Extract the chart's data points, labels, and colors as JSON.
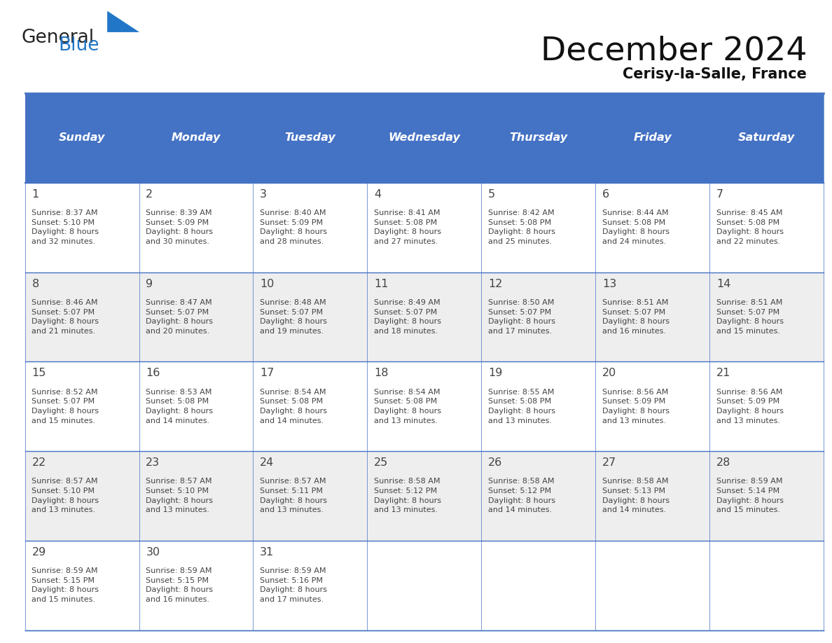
{
  "title": "December 2024",
  "subtitle": "Cerisy-la-Salle, France",
  "days_of_week": [
    "Sunday",
    "Monday",
    "Tuesday",
    "Wednesday",
    "Thursday",
    "Friday",
    "Saturday"
  ],
  "header_bg": "#4472C4",
  "header_text": "#FFFFFF",
  "row_bg_odd": "#FFFFFF",
  "row_bg_even": "#EEEEEE",
  "cell_border": "#4472C4",
  "day_num_color": "#444444",
  "cell_text_color": "#444444",
  "weeks": [
    [
      {
        "day": 1,
        "sunrise": "8:37 AM",
        "sunset": "5:10 PM",
        "daylight": "8 hours and 32 minutes."
      },
      {
        "day": 2,
        "sunrise": "8:39 AM",
        "sunset": "5:09 PM",
        "daylight": "8 hours and 30 minutes."
      },
      {
        "day": 3,
        "sunrise": "8:40 AM",
        "sunset": "5:09 PM",
        "daylight": "8 hours and 28 minutes."
      },
      {
        "day": 4,
        "sunrise": "8:41 AM",
        "sunset": "5:08 PM",
        "daylight": "8 hours and 27 minutes."
      },
      {
        "day": 5,
        "sunrise": "8:42 AM",
        "sunset": "5:08 PM",
        "daylight": "8 hours and 25 minutes."
      },
      {
        "day": 6,
        "sunrise": "8:44 AM",
        "sunset": "5:08 PM",
        "daylight": "8 hours and 24 minutes."
      },
      {
        "day": 7,
        "sunrise": "8:45 AM",
        "sunset": "5:08 PM",
        "daylight": "8 hours and 22 minutes."
      }
    ],
    [
      {
        "day": 8,
        "sunrise": "8:46 AM",
        "sunset": "5:07 PM",
        "daylight": "8 hours and 21 minutes."
      },
      {
        "day": 9,
        "sunrise": "8:47 AM",
        "sunset": "5:07 PM",
        "daylight": "8 hours and 20 minutes."
      },
      {
        "day": 10,
        "sunrise": "8:48 AM",
        "sunset": "5:07 PM",
        "daylight": "8 hours and 19 minutes."
      },
      {
        "day": 11,
        "sunrise": "8:49 AM",
        "sunset": "5:07 PM",
        "daylight": "8 hours and 18 minutes."
      },
      {
        "day": 12,
        "sunrise": "8:50 AM",
        "sunset": "5:07 PM",
        "daylight": "8 hours and 17 minutes."
      },
      {
        "day": 13,
        "sunrise": "8:51 AM",
        "sunset": "5:07 PM",
        "daylight": "8 hours and 16 minutes."
      },
      {
        "day": 14,
        "sunrise": "8:51 AM",
        "sunset": "5:07 PM",
        "daylight": "8 hours and 15 minutes."
      }
    ],
    [
      {
        "day": 15,
        "sunrise": "8:52 AM",
        "sunset": "5:07 PM",
        "daylight": "8 hours and 15 minutes."
      },
      {
        "day": 16,
        "sunrise": "8:53 AM",
        "sunset": "5:08 PM",
        "daylight": "8 hours and 14 minutes."
      },
      {
        "day": 17,
        "sunrise": "8:54 AM",
        "sunset": "5:08 PM",
        "daylight": "8 hours and 14 minutes."
      },
      {
        "day": 18,
        "sunrise": "8:54 AM",
        "sunset": "5:08 PM",
        "daylight": "8 hours and 13 minutes."
      },
      {
        "day": 19,
        "sunrise": "8:55 AM",
        "sunset": "5:08 PM",
        "daylight": "8 hours and 13 minutes."
      },
      {
        "day": 20,
        "sunrise": "8:56 AM",
        "sunset": "5:09 PM",
        "daylight": "8 hours and 13 minutes."
      },
      {
        "day": 21,
        "sunrise": "8:56 AM",
        "sunset": "5:09 PM",
        "daylight": "8 hours and 13 minutes."
      }
    ],
    [
      {
        "day": 22,
        "sunrise": "8:57 AM",
        "sunset": "5:10 PM",
        "daylight": "8 hours and 13 minutes."
      },
      {
        "day": 23,
        "sunrise": "8:57 AM",
        "sunset": "5:10 PM",
        "daylight": "8 hours and 13 minutes."
      },
      {
        "day": 24,
        "sunrise": "8:57 AM",
        "sunset": "5:11 PM",
        "daylight": "8 hours and 13 minutes."
      },
      {
        "day": 25,
        "sunrise": "8:58 AM",
        "sunset": "5:12 PM",
        "daylight": "8 hours and 13 minutes."
      },
      {
        "day": 26,
        "sunrise": "8:58 AM",
        "sunset": "5:12 PM",
        "daylight": "8 hours and 14 minutes."
      },
      {
        "day": 27,
        "sunrise": "8:58 AM",
        "sunset": "5:13 PM",
        "daylight": "8 hours and 14 minutes."
      },
      {
        "day": 28,
        "sunrise": "8:59 AM",
        "sunset": "5:14 PM",
        "daylight": "8 hours and 15 minutes."
      }
    ],
    [
      {
        "day": 29,
        "sunrise": "8:59 AM",
        "sunset": "5:15 PM",
        "daylight": "8 hours and 15 minutes."
      },
      {
        "day": 30,
        "sunrise": "8:59 AM",
        "sunset": "5:15 PM",
        "daylight": "8 hours and 16 minutes."
      },
      {
        "day": 31,
        "sunrise": "8:59 AM",
        "sunset": "5:16 PM",
        "daylight": "8 hours and 17 minutes."
      },
      null,
      null,
      null,
      null
    ]
  ],
  "logo_general_color": "#222222",
  "logo_blue_color": "#2176C7",
  "logo_triangle_color": "#2176C7",
  "fig_width": 11.88,
  "fig_height": 9.18,
  "dpi": 100
}
